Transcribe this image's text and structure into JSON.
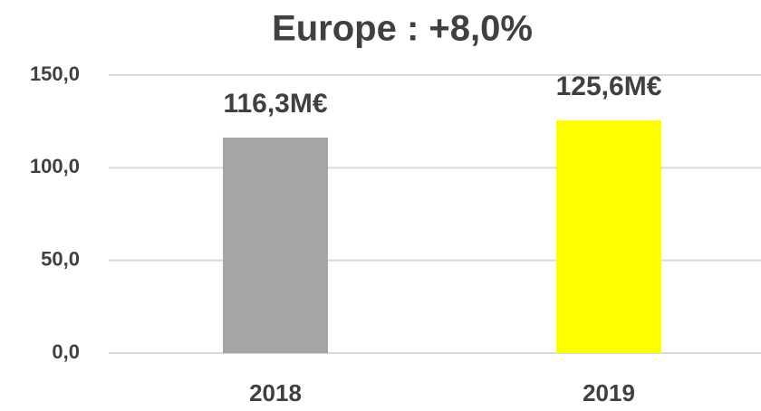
{
  "chart_data": {
    "type": "bar",
    "title": "Europe : +8,0%",
    "categories": [
      "2018",
      "2019"
    ],
    "values": [
      116.3,
      125.6
    ],
    "value_labels": [
      "116,3M€",
      "125,6M€"
    ],
    "colors": [
      "#a5a5a5",
      "#ffff00"
    ],
    "ylim": [
      0,
      150
    ],
    "yticks": [
      {
        "value": 0,
        "label": "0,0"
      },
      {
        "value": 50,
        "label": "50,0"
      },
      {
        "value": 100,
        "label": "100,0"
      },
      {
        "value": 150,
        "label": "150,0"
      }
    ],
    "grid": true
  }
}
